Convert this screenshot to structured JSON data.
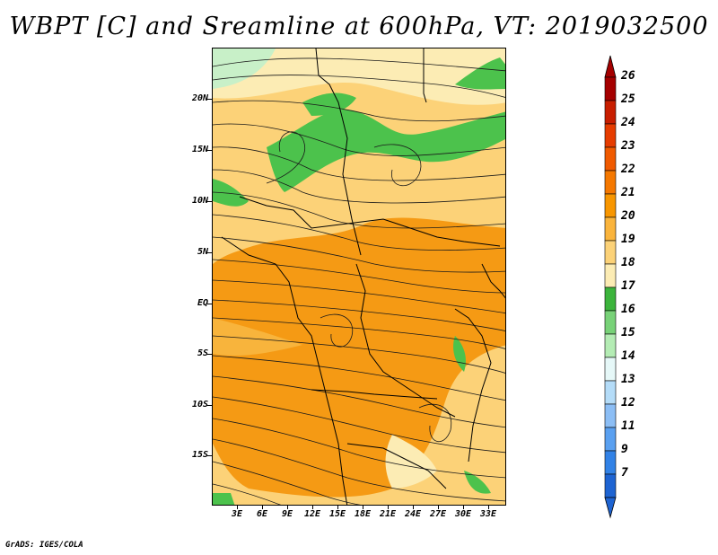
{
  "title": "WBPT [C] and Sreamline at 600hPa, VT: 2019032500",
  "credit": "GrADS: IGES/COLA",
  "lat_labels": [
    "20N",
    "15N",
    "10N",
    "5N",
    "EQ",
    "5S",
    "10S",
    "15S"
  ],
  "lon_labels": [
    "3E",
    "6E",
    "9E",
    "12E",
    "15E",
    "18E",
    "21E",
    "24E",
    "27E",
    "30E",
    "33E"
  ],
  "colorbar": {
    "labels": [
      "26",
      "25",
      "24",
      "23",
      "22",
      "21",
      "20",
      "19",
      "18",
      "17",
      "16",
      "15",
      "14",
      "13",
      "12",
      "11",
      "9",
      "7"
    ],
    "colors": [
      "#a50000",
      "#c81e00",
      "#e63c00",
      "#f05a00",
      "#f57800",
      "#f89600",
      "#fab43c",
      "#fcd278",
      "#fcecb4",
      "#3cb43c",
      "#78d278",
      "#b4ecb4",
      "#e6f8f8",
      "#b4dcf8",
      "#8cbef5",
      "#5aa0f0",
      "#3282e6",
      "#1e64d2"
    ],
    "top_arrow_color": "#a50000",
    "bottom_arrow_color": "#1e64d2"
  },
  "map_colors": {
    "orange": "#f59a14",
    "light_orange": "#f8b43c",
    "yellow": "#fcd278",
    "pale_yellow": "#fcecb4",
    "green": "#4cc24c",
    "light_green": "#96de96",
    "pale_green": "#c8f0c8"
  }
}
